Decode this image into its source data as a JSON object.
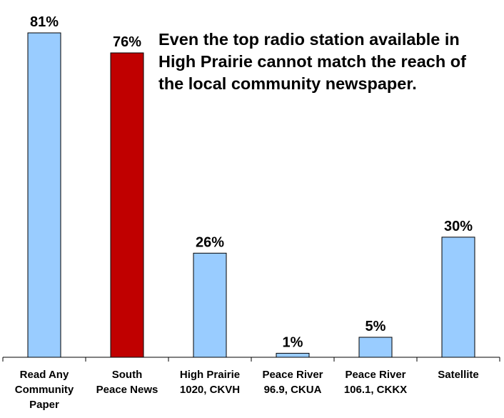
{
  "chart_data": {
    "type": "bar",
    "categories": [
      [
        "Read Any",
        "Community",
        "Paper"
      ],
      [
        "South",
        "Peace News"
      ],
      [
        "High Prairie",
        "1020, CKVH"
      ],
      [
        "Peace River",
        "96.9, CKUA"
      ],
      [
        "Peace River",
        "106.1, CKKX"
      ],
      [
        "Satellite"
      ]
    ],
    "values": [
      81,
      76,
      26,
      1,
      5,
      30
    ],
    "value_labels": [
      "81%",
      "76%",
      "26%",
      "1%",
      "5%",
      "30%"
    ],
    "bar_colors": [
      "#99CCFF",
      "#C00000",
      "#99CCFF",
      "#99CCFF",
      "#99CCFF",
      "#99CCFF"
    ],
    "ylim": [
      0,
      81
    ],
    "annotation": "Even the top radio station available in High Prairie cannot match the reach of the local community newspaper.",
    "grid": false,
    "legend": "none"
  }
}
